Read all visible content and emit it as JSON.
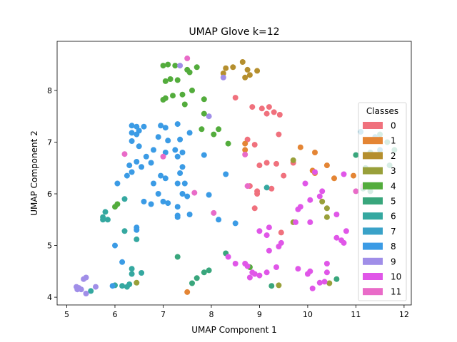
{
  "chart_data": {
    "type": "scatter",
    "title": "UMAP Glove k=12",
    "xlabel": "UMAP Component 1",
    "ylabel": "UMAP Component 2",
    "xlim": [
      4.8,
      12.15
    ],
    "ylim": [
      3.85,
      8.95
    ],
    "xticks": [
      5,
      6,
      7,
      8,
      9,
      10,
      11,
      12
    ],
    "yticks": [
      4,
      5,
      6,
      7,
      8
    ],
    "grid": false,
    "legend": {
      "title": "Classes",
      "placement": "right"
    },
    "series": [
      {
        "name": "0",
        "color": "#f0717d",
        "points": [
          [
            8.5,
            7.86
          ],
          [
            8.85,
            7.68
          ],
          [
            9.05,
            7.65
          ],
          [
            9.15,
            7.55
          ],
          [
            9.2,
            7.68
          ],
          [
            9.3,
            7.58
          ],
          [
            9.4,
            7.15
          ],
          [
            9.42,
            7.53
          ],
          [
            8.75,
            7.05
          ],
          [
            8.9,
            6.95
          ],
          [
            9,
            6.55
          ],
          [
            9.15,
            6.6
          ],
          [
            9.35,
            6.58
          ],
          [
            9.5,
            6.35
          ],
          [
            9.7,
            6.6
          ],
          [
            8.8,
            6.15
          ],
          [
            8.95,
            6.05
          ],
          [
            8.95,
            6.0
          ],
          [
            9.25,
            6.1
          ],
          [
            8.9,
            5.72
          ],
          [
            9.45,
            5.25
          ]
        ]
      },
      {
        "name": "1",
        "color": "#e48534",
        "points": [
          [
            8.7,
            6.97
          ],
          [
            8.7,
            6.85
          ],
          [
            9.85,
            6.9
          ],
          [
            10.15,
            6.8
          ],
          [
            10.1,
            6.45
          ],
          [
            10.15,
            6.4
          ],
          [
            10.4,
            6.55
          ],
          [
            10.55,
            6.3
          ],
          [
            10.95,
            6.35
          ],
          [
            7.5,
            4.1
          ]
        ]
      },
      {
        "name": "2",
        "color": "#b58f2e",
        "points": [
          [
            8.25,
            8.33
          ],
          [
            8.3,
            8.43
          ],
          [
            8.45,
            8.45
          ],
          [
            8.65,
            8.55
          ],
          [
            8.75,
            8.4
          ],
          [
            8.7,
            8.25
          ],
          [
            8.8,
            8.3
          ],
          [
            8.95,
            8.38
          ]
        ]
      },
      {
        "name": "3",
        "color": "#99a03a",
        "points": [
          [
            10.3,
            5.85
          ],
          [
            10.4,
            5.72
          ],
          [
            10.4,
            5.55
          ],
          [
            9.7,
            6.65
          ],
          [
            9.7,
            5.45
          ],
          [
            9.4,
            4.23
          ],
          [
            10.45,
            4.27
          ],
          [
            6.45,
            4.28
          ]
        ]
      },
      {
        "name": "4",
        "color": "#53ac3c",
        "points": [
          [
            7.0,
            8.48
          ],
          [
            7.1,
            8.5
          ],
          [
            7.25,
            8.48
          ],
          [
            7.5,
            8.4
          ],
          [
            7.55,
            8.35
          ],
          [
            7.7,
            8.45
          ],
          [
            7.15,
            8.22
          ],
          [
            7.05,
            8.18
          ],
          [
            7.3,
            8.2
          ],
          [
            7.6,
            8.0
          ],
          [
            7.4,
            7.92
          ],
          [
            7.2,
            7.9
          ],
          [
            7.05,
            7.85
          ],
          [
            7.0,
            7.82
          ],
          [
            7.45,
            7.73
          ],
          [
            7.85,
            7.83
          ],
          [
            7.85,
            7.55
          ],
          [
            8.15,
            7.25
          ],
          [
            7.8,
            7.25
          ],
          [
            8.05,
            7.15
          ],
          [
            6.0,
            5.75
          ],
          [
            6.05,
            5.8
          ],
          [
            8.35,
            6.97
          ],
          [
            8.8,
            4.58
          ]
        ]
      },
      {
        "name": "5",
        "color": "#39a67c",
        "points": [
          [
            11.0,
            6.75
          ],
          [
            11.2,
            6.5
          ],
          [
            11.3,
            6.8
          ],
          [
            11.15,
            6.1
          ],
          [
            11.3,
            6.05
          ],
          [
            11.5,
            7.15
          ],
          [
            11.65,
            7.0
          ],
          [
            11.8,
            6.85
          ],
          [
            11.7,
            6.55
          ],
          [
            7.3,
            4.78
          ],
          [
            7.6,
            4.27
          ],
          [
            7.7,
            4.37
          ],
          [
            7.85,
            4.48
          ],
          [
            7.95,
            4.52
          ],
          [
            8.3,
            4.85
          ],
          [
            9.25,
            4.22
          ],
          [
            10.6,
            4.35
          ]
        ]
      },
      {
        "name": "6",
        "color": "#35a8a0",
        "points": [
          [
            5.8,
            5.65
          ],
          [
            5.75,
            5.55
          ],
          [
            5.75,
            5.5
          ],
          [
            5.85,
            5.5
          ],
          [
            6.2,
            5.28
          ],
          [
            6.45,
            5.12
          ],
          [
            6.2,
            5.9
          ],
          [
            5.5,
            4.12
          ],
          [
            6.0,
            4.23
          ],
          [
            6.15,
            4.22
          ],
          [
            6.25,
            4.2
          ],
          [
            6.3,
            4.25
          ],
          [
            6.35,
            4.45
          ],
          [
            6.35,
            4.55
          ],
          [
            6.55,
            4.47
          ],
          [
            9.15,
            6.12
          ]
        ]
      },
      {
        "name": "7",
        "color": "#3aa2c8",
        "points": [
          [
            11.1,
            7.2
          ],
          [
            11.4,
            7.1
          ],
          [
            11.5,
            6.85
          ]
        ]
      },
      {
        "name": "8",
        "color": "#3b9be5",
        "points": [
          [
            6.35,
            7.32
          ],
          [
            6.45,
            7.3
          ],
          [
            6.5,
            7.22
          ],
          [
            6.6,
            7.3
          ],
          [
            6.35,
            7.18
          ],
          [
            6.45,
            7.15
          ],
          [
            6.35,
            7.02
          ],
          [
            6.95,
            7.32
          ],
          [
            7.05,
            7.28
          ],
          [
            7.3,
            7.35
          ],
          [
            6.9,
            7.1
          ],
          [
            7.1,
            7.03
          ],
          [
            7.35,
            7.05
          ],
          [
            7.55,
            7.18
          ],
          [
            6.5,
            6.92
          ],
          [
            6.65,
            6.72
          ],
          [
            6.8,
            6.85
          ],
          [
            6.75,
            6.6
          ],
          [
            7.05,
            6.8
          ],
          [
            7.25,
            6.85
          ],
          [
            7.4,
            6.8
          ],
          [
            7.3,
            6.72
          ],
          [
            7.85,
            6.75
          ],
          [
            6.3,
            6.55
          ],
          [
            6.45,
            6.62
          ],
          [
            6.55,
            6.52
          ],
          [
            6.35,
            6.42
          ],
          [
            6.25,
            6.35
          ],
          [
            7.4,
            6.52
          ],
          [
            7.35,
            6.4
          ],
          [
            6.95,
            6.35
          ],
          [
            7.05,
            6.3
          ],
          [
            6.05,
            6.2
          ],
          [
            6.8,
            6.2
          ],
          [
            7.3,
            6.2
          ],
          [
            7.4,
            6.0
          ],
          [
            6.6,
            5.85
          ],
          [
            6.9,
            6.0
          ],
          [
            7.0,
            5.85
          ],
          [
            7.1,
            5.82
          ],
          [
            7.3,
            5.75
          ],
          [
            7.5,
            5.95
          ],
          [
            6.75,
            5.8
          ],
          [
            7.3,
            5.58
          ],
          [
            7.3,
            5.55
          ],
          [
            7.55,
            5.6
          ],
          [
            7.95,
            5.98
          ],
          [
            8.3,
            6.38
          ],
          [
            8.15,
            5.5
          ],
          [
            8.5,
            5.43
          ],
          [
            6.45,
            5.35
          ],
          [
            6.0,
            5.0
          ],
          [
            6.15,
            4.68
          ],
          [
            5.95,
            4.22
          ],
          [
            6.45,
            5.3
          ],
          [
            7.45,
            6.2
          ]
        ]
      },
      {
        "name": "9",
        "color": "#a08ee8",
        "points": [
          [
            5.2,
            4.2
          ],
          [
            5.25,
            4.18
          ],
          [
            5.22,
            4.15
          ],
          [
            5.3,
            4.15
          ],
          [
            5.35,
            4.35
          ],
          [
            5.4,
            4.38
          ],
          [
            5.4,
            4.07
          ],
          [
            5.6,
            4.2
          ],
          [
            7.35,
            8.48
          ],
          [
            7.95,
            7.5
          ],
          [
            8.25,
            8.25
          ]
        ]
      },
      {
        "name": "10",
        "color": "#e056e8",
        "points": [
          [
            8.5,
            4.65
          ],
          [
            8.7,
            4.65
          ],
          [
            8.75,
            4.6
          ],
          [
            8.85,
            4.48
          ],
          [
            8.9,
            4.45
          ],
          [
            8.8,
            4.38
          ],
          [
            9.0,
            4.42
          ],
          [
            9.15,
            4.48
          ],
          [
            9.35,
            4.58
          ],
          [
            9.8,
            4.55
          ],
          [
            10.0,
            4.45
          ],
          [
            10.05,
            4.5
          ],
          [
            10.1,
            4.17
          ],
          [
            10.25,
            4.28
          ],
          [
            10.35,
            4.3
          ],
          [
            10.4,
            4.48
          ],
          [
            10.4,
            4.65
          ],
          [
            10.6,
            5.15
          ],
          [
            10.7,
            5.1
          ],
          [
            10.75,
            5.05
          ],
          [
            10.8,
            5.28
          ],
          [
            9.2,
            5.35
          ],
          [
            9.15,
            5.2
          ],
          [
            9.0,
            5.28
          ],
          [
            9.45,
            5.05
          ],
          [
            9.4,
            4.98
          ],
          [
            10.05,
            5.45
          ],
          [
            9.75,
            5.45
          ],
          [
            9.8,
            5.7
          ],
          [
            9.85,
            5.75
          ],
          [
            10.05,
            5.88
          ],
          [
            10.25,
            5.95
          ],
          [
            10.3,
            6.05
          ],
          [
            10.6,
            5.6
          ],
          [
            9.95,
            6.2
          ],
          [
            10.15,
            6.42
          ],
          [
            10.75,
            6.38
          ],
          [
            8.35,
            4.78
          ],
          [
            9.2,
            4.9
          ]
        ]
      },
      {
        "name": "11",
        "color": "#e96bc8",
        "points": [
          [
            7.5,
            8.62
          ],
          [
            7.65,
            6.02
          ],
          [
            7.0,
            6.72
          ],
          [
            6.2,
            6.77
          ],
          [
            8.05,
            5.63
          ],
          [
            8.7,
            6.76
          ],
          [
            8.75,
            6.15
          ],
          [
            11.0,
            6.05
          ],
          [
            11.15,
            6.15
          ]
        ]
      }
    ]
  }
}
